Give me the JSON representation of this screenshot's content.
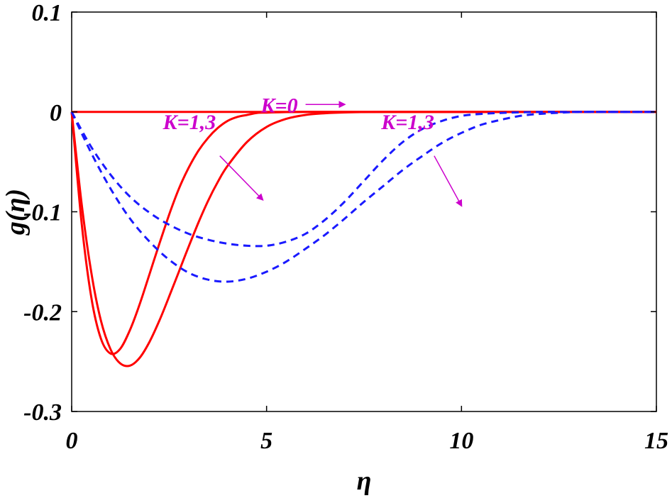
{
  "chart_data": {
    "type": "line",
    "title": "",
    "xlabel": "η",
    "ylabel": "g(η)",
    "xlim": [
      0,
      15
    ],
    "ylim": [
      -0.3,
      0.1
    ],
    "xticks": [
      0,
      5,
      10,
      15
    ],
    "xtick_labels": [
      "0",
      "5",
      "10",
      "15"
    ],
    "yticks": [
      0.1,
      0,
      -0.1,
      -0.2,
      -0.3
    ],
    "ytick_labels": [
      "0.1",
      "0",
      "-0.1",
      "-0.2",
      "-0.3"
    ],
    "grid": false,
    "legend": "none",
    "series": [
      {
        "color": "#ff0000",
        "dash": "solid",
        "x": [
          0,
          15
        ],
        "y": [
          0,
          0
        ]
      },
      {
        "color": "#ff0000",
        "dash": "solid",
        "x": [
          0,
          0.25,
          0.5,
          0.75,
          1.0,
          1.25,
          1.5,
          1.75,
          2.0,
          2.25,
          2.5,
          2.75,
          3.0,
          3.25,
          3.5,
          3.75,
          4.0,
          4.25,
          4.5,
          4.75,
          5.0,
          5.5,
          6.0,
          6.5,
          7.0,
          8.0,
          10.0,
          15.0
        ],
        "y": [
          0,
          -0.109,
          -0.185,
          -0.227,
          -0.242,
          -0.237,
          -0.218,
          -0.192,
          -0.162,
          -0.132,
          -0.103,
          -0.077,
          -0.056,
          -0.039,
          -0.026,
          -0.016,
          -0.009,
          -0.005,
          -0.003,
          -0.001,
          -0.0007,
          -0.0002,
          0,
          0,
          0,
          0,
          0,
          0
        ]
      },
      {
        "color": "#ff0000",
        "dash": "solid",
        "x": [
          0,
          0.25,
          0.5,
          0.75,
          1.0,
          1.25,
          1.5,
          1.75,
          2.0,
          2.25,
          2.5,
          2.75,
          3.0,
          3.25,
          3.5,
          3.75,
          4.0,
          4.5,
          5.0,
          5.5,
          6.0,
          6.5,
          7.0,
          7.5,
          8.0,
          9.0,
          10.0,
          15.0
        ],
        "y": [
          0,
          -0.09,
          -0.16,
          -0.209,
          -0.238,
          -0.252,
          -0.254,
          -0.246,
          -0.23,
          -0.209,
          -0.185,
          -0.16,
          -0.135,
          -0.111,
          -0.089,
          -0.07,
          -0.054,
          -0.03,
          -0.015,
          -0.007,
          -0.003,
          -0.0013,
          -0.0005,
          -0.0002,
          0,
          0,
          0,
          0
        ]
      },
      {
        "color": "#1a1aff",
        "dash": "dashed",
        "x": [
          0,
          0.5,
          1.0,
          1.5,
          2.0,
          2.5,
          3.0,
          3.5,
          4.0,
          4.5,
          5.0,
          5.5,
          6.0,
          6.5,
          7.0,
          7.5,
          8.0,
          8.5,
          9.0,
          9.5,
          10.0,
          10.5,
          11.0,
          12.0,
          13.0,
          14.0,
          15.0
        ],
        "y": [
          0,
          -0.035,
          -0.063,
          -0.085,
          -0.101,
          -0.113,
          -0.122,
          -0.128,
          -0.132,
          -0.134,
          -0.134,
          -0.13,
          -0.122,
          -0.108,
          -0.09,
          -0.069,
          -0.048,
          -0.03,
          -0.017,
          -0.009,
          -0.004,
          -0.002,
          -0.001,
          0,
          0,
          0,
          0
        ]
      },
      {
        "color": "#1a1aff",
        "dash": "dashed",
        "x": [
          0,
          0.5,
          1.0,
          1.5,
          2.0,
          2.5,
          3.0,
          3.5,
          4.0,
          4.5,
          5.0,
          5.5,
          6.0,
          6.5,
          7.0,
          7.5,
          8.0,
          8.5,
          9.0,
          9.5,
          10.0,
          10.5,
          11.0,
          11.5,
          12.0,
          13.0,
          14.0,
          15.0
        ],
        "y": [
          0,
          -0.041,
          -0.077,
          -0.107,
          -0.13,
          -0.148,
          -0.161,
          -0.168,
          -0.17,
          -0.167,
          -0.16,
          -0.15,
          -0.137,
          -0.123,
          -0.107,
          -0.09,
          -0.074,
          -0.058,
          -0.044,
          -0.031,
          -0.021,
          -0.013,
          -0.008,
          -0.004,
          -0.002,
          0,
          0,
          0
        ]
      }
    ],
    "annotations": [
      {
        "text": "K=0",
        "color": "#cc00cc",
        "text_at": [
          5.8,
          0.0065
        ],
        "arrow_from": [
          6.0,
          0.0075
        ],
        "arrow_to": [
          7.0,
          0.0075
        ]
      },
      {
        "text": "K=1,3",
        "color": "#cc00cc",
        "text_at": [
          3.7,
          -0.01
        ],
        "arrow_from": [
          3.8,
          -0.044
        ],
        "arrow_to": [
          4.9,
          -0.088
        ]
      },
      {
        "text": "K=1,3",
        "color": "#cc00cc",
        "text_at": [
          9.3,
          -0.01
        ],
        "arrow_from": [
          9.3,
          -0.044
        ],
        "arrow_to": [
          10.0,
          -0.094
        ]
      }
    ]
  }
}
